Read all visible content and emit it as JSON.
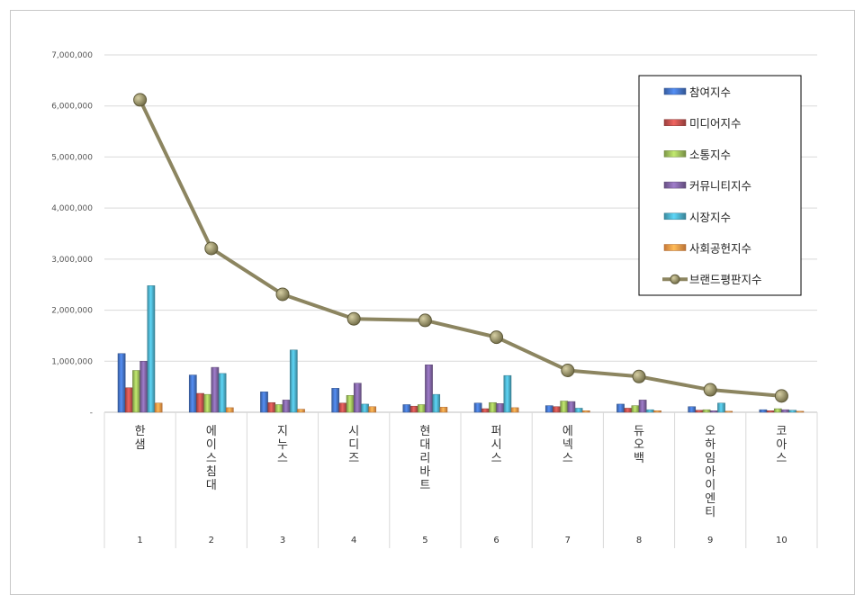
{
  "chart_data": {
    "type": "bar",
    "title": "",
    "xlabel": "",
    "ylabel": "",
    "ylim": [
      0,
      7000000
    ],
    "yticks": [
      "-",
      "1,000,000",
      "2,000,000",
      "3,000,000",
      "4,000,000",
      "5,000,000",
      "6,000,000",
      "7,000,000"
    ],
    "categories": [
      {
        "name": "한샘",
        "rank": "1"
      },
      {
        "name": "에이스침대",
        "rank": "2"
      },
      {
        "name": "지누스",
        "rank": "3"
      },
      {
        "name": "시디즈",
        "rank": "4"
      },
      {
        "name": "현대리바트",
        "rank": "5"
      },
      {
        "name": "퍼시스",
        "rank": "6"
      },
      {
        "name": "에넥스",
        "rank": "7"
      },
      {
        "name": "듀오백",
        "rank": "8"
      },
      {
        "name": "오하임아이엔티",
        "rank": "9"
      },
      {
        "name": "코아스",
        "rank": "10"
      }
    ],
    "series": [
      {
        "name": "참여지수",
        "color": "#4472c4",
        "type": "bar",
        "values": [
          1150000,
          730000,
          400000,
          470000,
          150000,
          180000,
          130000,
          160000,
          110000,
          50000
        ]
      },
      {
        "name": "미디어지수",
        "color": "#c0504d",
        "type": "bar",
        "values": [
          480000,
          370000,
          190000,
          180000,
          120000,
          70000,
          110000,
          80000,
          40000,
          30000
        ]
      },
      {
        "name": "소통지수",
        "color": "#9bbb59",
        "type": "bar",
        "values": [
          820000,
          350000,
          150000,
          330000,
          150000,
          190000,
          220000,
          130000,
          50000,
          70000
        ]
      },
      {
        "name": "커뮤니티지수",
        "color": "#8064a2",
        "type": "bar",
        "values": [
          1000000,
          880000,
          240000,
          570000,
          930000,
          170000,
          210000,
          240000,
          30000,
          50000
        ]
      },
      {
        "name": "시장지수",
        "color": "#4bacc6",
        "type": "bar",
        "values": [
          2480000,
          760000,
          1220000,
          160000,
          350000,
          720000,
          80000,
          50000,
          180000,
          40000
        ]
      },
      {
        "name": "사회공헌지수",
        "color": "#f79646",
        "type": "bar",
        "values": [
          180000,
          90000,
          60000,
          110000,
          100000,
          90000,
          30000,
          30000,
          20000,
          20000
        ]
      },
      {
        "name": "브랜드평판지수",
        "color": "#8c8560",
        "type": "line",
        "values": [
          6120000,
          3210000,
          2310000,
          1830000,
          1800000,
          1470000,
          820000,
          700000,
          440000,
          320000
        ]
      }
    ],
    "legend_position": "top-right",
    "grid": true
  }
}
